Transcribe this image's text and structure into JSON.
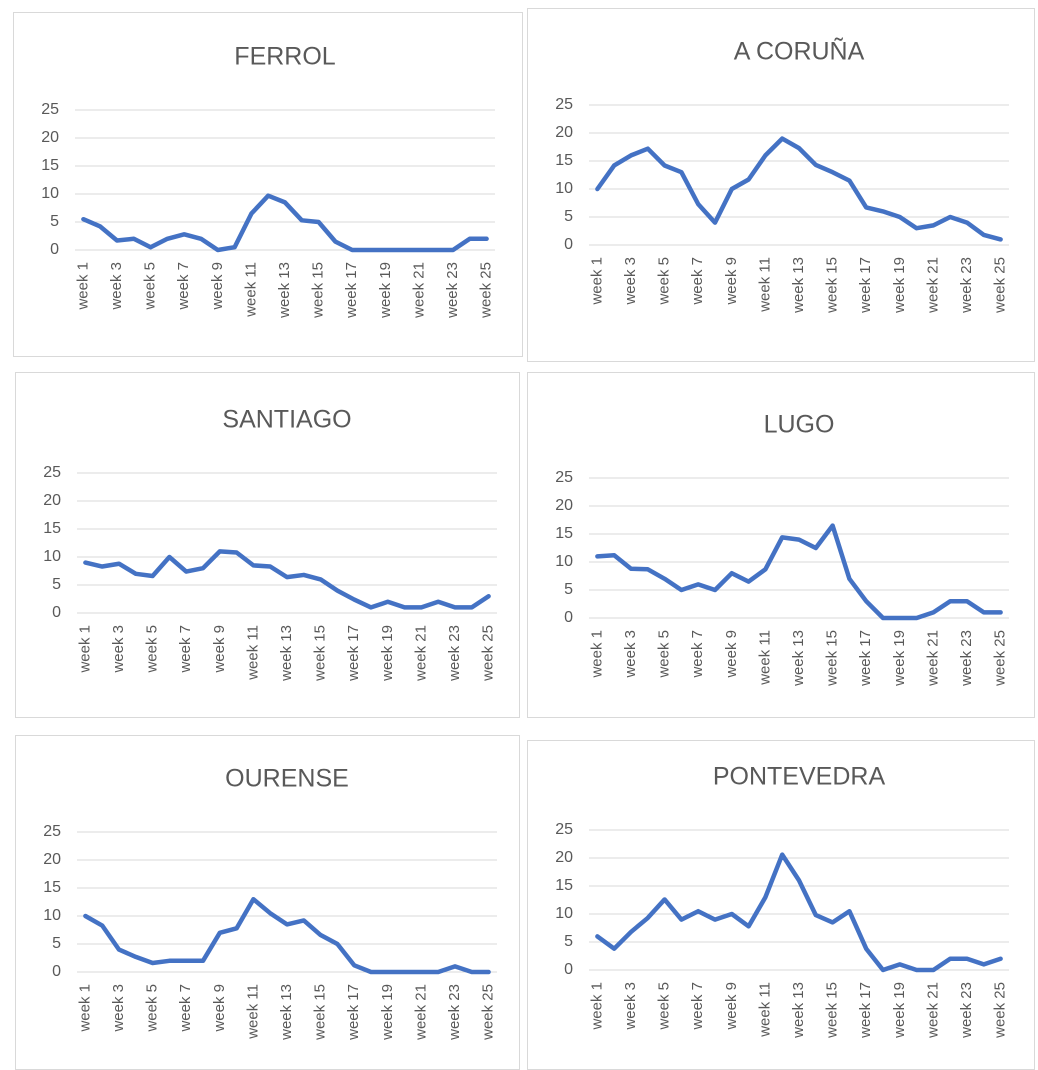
{
  "chart_data": [
    {
      "type": "line",
      "title": "FERROL",
      "categories": [
        "week 1",
        null,
        "week 3",
        null,
        "week 5",
        null,
        "week 7",
        null,
        "week 9",
        null,
        "week 11",
        null,
        "week 13",
        null,
        "week 15",
        null,
        "week 17",
        null,
        "week 19",
        null,
        "week 21",
        null,
        "week 23",
        null,
        "week 25"
      ],
      "values": [
        5.5,
        4.2,
        1.7,
        2.0,
        0.5,
        2.0,
        2.8,
        2.0,
        0,
        0.5,
        6.5,
        9.7,
        8.5,
        5.3,
        5.0,
        1.5,
        0,
        0,
        0,
        0,
        0,
        0,
        0,
        2.0,
        2.0
      ],
      "color": "#4472c4",
      "ylim": [
        0,
        25
      ],
      "yticks": [
        0,
        5,
        10,
        15,
        20,
        25
      ],
      "grid": true
    },
    {
      "type": "line",
      "title": "A CORUÑA",
      "categories": [
        "week 1",
        null,
        "week 3",
        null,
        "week 5",
        null,
        "week 7",
        null,
        "week 9",
        null,
        "week 11",
        null,
        "week 13",
        null,
        "week 15",
        null,
        "week 17",
        null,
        "week 19",
        null,
        "week 21",
        null,
        "week 23",
        null,
        "week 25"
      ],
      "values": [
        10,
        14.2,
        16,
        17.2,
        14.2,
        13,
        7.3,
        4,
        10,
        11.7,
        16,
        19,
        17.3,
        14.3,
        13,
        11.5,
        6.7,
        6,
        5,
        3,
        3.5,
        5,
        4,
        1.8,
        1
      ],
      "color": "#4472c4",
      "ylim": [
        0,
        25
      ],
      "yticks": [
        0,
        5,
        10,
        15,
        20,
        25
      ],
      "grid": true
    },
    {
      "type": "line",
      "title": "SANTIAGO",
      "categories": [
        "week 1",
        null,
        "week 3",
        null,
        "week 5",
        null,
        "week 7",
        null,
        "week 9",
        null,
        "week 11",
        null,
        "week 13",
        null,
        "week 15",
        null,
        "week 17",
        null,
        "week 19",
        null,
        "week 21",
        null,
        "week 23",
        null,
        "week 25"
      ],
      "values": [
        9,
        8.3,
        8.8,
        7,
        6.6,
        10,
        7.4,
        8,
        11,
        10.8,
        8.5,
        8.3,
        6.4,
        6.8,
        6,
        4,
        2.4,
        1,
        2,
        1,
        1,
        2,
        1,
        1,
        3
      ],
      "color": "#4472c4",
      "ylim": [
        0,
        25
      ],
      "yticks": [
        0,
        5,
        10,
        15,
        20,
        25
      ],
      "grid": true
    },
    {
      "type": "line",
      "title": "LUGO",
      "categories": [
        "week 1",
        null,
        "week 3",
        null,
        "week 5",
        null,
        "week 7",
        null,
        "week 9",
        null,
        "week 11",
        null,
        "week 13",
        null,
        "week 15",
        null,
        "week 17",
        null,
        "week 19",
        null,
        "week 21",
        null,
        "week 23",
        null,
        "week 25"
      ],
      "values": [
        11,
        11.2,
        8.8,
        8.7,
        7,
        5,
        6,
        5,
        8,
        6.5,
        8.7,
        14.4,
        14,
        12.5,
        16.5,
        7,
        3,
        0,
        0,
        0,
        1,
        3,
        3,
        1,
        1
      ],
      "color": "#4472c4",
      "ylim": [
        0,
        25
      ],
      "yticks": [
        0,
        5,
        10,
        15,
        20,
        25
      ],
      "grid": true
    },
    {
      "type": "line",
      "title": "OURENSE",
      "categories": [
        "week 1",
        null,
        "week 3",
        null,
        "week 5",
        null,
        "week 7",
        null,
        "week 9",
        null,
        "week 11",
        null,
        "week 13",
        null,
        "week 15",
        null,
        "week 17",
        null,
        "week 19",
        null,
        "week 21",
        null,
        "week 23",
        null,
        "week 25"
      ],
      "values": [
        10,
        8.3,
        4,
        2.7,
        1.6,
        2,
        2,
        2,
        7,
        7.8,
        13,
        10.5,
        8.5,
        9.2,
        6.6,
        5,
        1.2,
        0,
        0,
        0,
        0,
        0,
        1,
        0,
        0
      ],
      "color": "#4472c4",
      "ylim": [
        0,
        25
      ],
      "yticks": [
        0,
        5,
        10,
        15,
        20,
        25
      ],
      "grid": true
    },
    {
      "type": "line",
      "title": "PONTEVEDRA",
      "categories": [
        "week 1",
        null,
        "week 3",
        null,
        "week 5",
        null,
        "week 7",
        null,
        "week 9",
        null,
        "week 11",
        null,
        "week 13",
        null,
        "week 15",
        null,
        "week 17",
        null,
        "week 19",
        null,
        "week 21",
        null,
        "week 23",
        null,
        "week 25"
      ],
      "values": [
        6,
        3.8,
        6.8,
        9.3,
        12.6,
        9,
        10.5,
        9,
        10,
        7.8,
        13,
        20.6,
        16,
        9.8,
        8.5,
        10.5,
        3.8,
        0,
        1,
        0,
        0,
        2,
        2,
        1,
        2
      ],
      "color": "#4472c4",
      "ylim": [
        0,
        25
      ],
      "yticks": [
        0,
        5,
        10,
        15,
        20,
        25
      ],
      "grid": true
    }
  ]
}
